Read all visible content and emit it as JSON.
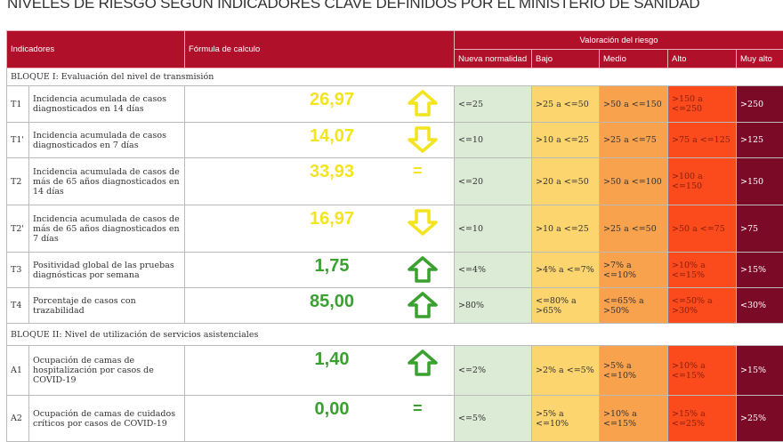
{
  "title": "NIVELES DE RIESGO SEGÚN INDICADORES CLAVE DEFINIDOS POR EL MINISTERIO DE SANIDAD",
  "header": {
    "indicadores": "Indicadores",
    "formula": "Fórmula de calculo",
    "valoracion": "Valoración del riesgo",
    "levels": [
      "Nueva normalidad",
      "Bajo",
      "Medio",
      "Alto",
      "Muy alto"
    ]
  },
  "colors": {
    "header": "#b0102a",
    "nueva": "#dcebd6",
    "bajo": "#fcd56e",
    "medio": "#f9a24e",
    "alto": "#fb4a1c",
    "muy_alto": "#7a0a25",
    "yellow_value": "#f2e41e",
    "green_value": "#3aa030"
  },
  "blocks": [
    {
      "title": "BLOQUE I: Evaluación del nivel de transmisión",
      "rows": [
        {
          "id": "T1",
          "name": "Incidencia acumulada de casos diagnosticados en 14 días",
          "value": "26,97",
          "trend": "up",
          "color": "yellow",
          "levels": [
            "<=25",
            ">25 a <=50",
            ">50 a <=150",
            ">150 a <=250",
            ">250"
          ]
        },
        {
          "id": "T1'",
          "name": "Incidencia acumulada de casos diagnosticados en 7 días",
          "value": "14,07",
          "trend": "down",
          "color": "yellow",
          "levels": [
            "<=10",
            ">10 a <=25",
            ">25 a <=75",
            ">75 a <=125",
            ">125"
          ]
        },
        {
          "id": "T2",
          "name": "Incidencia acumulada de casos de más de 65 años diagnosticados en 14 días",
          "value": "33,93",
          "trend": "equal",
          "color": "yellow",
          "levels": [
            "<=20",
            ">20 a <=50",
            ">50 a <=100",
            ">100 a <=150",
            ">150"
          ]
        },
        {
          "id": "T2'",
          "name": "Incidencia acumulada de casos de más de 65 años diagnosticados en 7 días",
          "value": "16,97",
          "trend": "down",
          "color": "yellow",
          "levels": [
            "<=10",
            ">10 a <=25",
            ">25 a <=50",
            ">50 a <=75",
            ">75"
          ]
        },
        {
          "id": "T3",
          "name": "Positividad global de las pruebas diagnósticas por semana",
          "value": "1,75",
          "trend": "up",
          "color": "green",
          "levels": [
            "<=4%",
            ">4% a <=7%",
            ">7% a <=10%",
            ">10% a <=15%",
            ">15%"
          ]
        },
        {
          "id": "T4",
          "name": "Porcentaje de casos con trazabilidad",
          "value": "85,00",
          "trend": "up",
          "color": "green",
          "levels": [
            ">80%",
            "<=80% a >65%",
            "<=65% a >50%",
            "<=50% a >30%",
            "<30%"
          ]
        }
      ]
    },
    {
      "title": "BLOQUE II: Nivel de utilización de servicios asistenciales",
      "rows": [
        {
          "id": "A1",
          "name": "Ocupación de camas de hospitalización por casos de COVID-19",
          "value": "1,40",
          "trend": "up",
          "color": "green",
          "levels": [
            "<=2%",
            ">2% a <=5%",
            ">5% a <=10%",
            ">10% a <=15%",
            ">15%"
          ]
        },
        {
          "id": "A2",
          "name": "Ocupación de camas de cuidados críticos por casos de COVID-19",
          "value": "0,00",
          "trend": "equal",
          "color": "green",
          "levels": [
            "<=5%",
            ">5% a <=10%",
            ">10% a <=15%",
            ">15% a <=25%",
            ">25%"
          ]
        }
      ]
    }
  ]
}
